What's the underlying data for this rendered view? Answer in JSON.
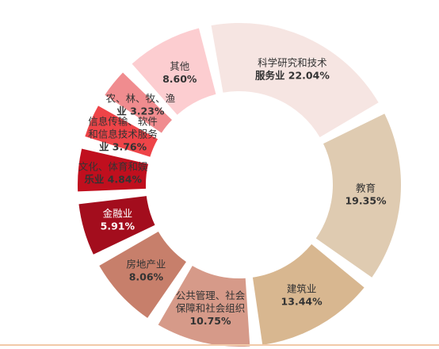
{
  "chart_data": {
    "type": "pie",
    "title": "",
    "categories": [
      "科学研究和技术服务业",
      "教育",
      "建筑业",
      "公共管理、社会保障和社会组织",
      "房地产业",
      "金融业",
      "文化、体育和娱乐业",
      "信息传输、软件和信息技术服务业",
      "农、林、牧、渔业",
      "其他"
    ],
    "label_lines": [
      [
        "科学研究和技术",
        "服务业 22.04%"
      ],
      [
        "教育",
        "19.35%"
      ],
      [
        "建筑业",
        "13.44%"
      ],
      [
        "公共管理、社会",
        "保障和社会组织",
        "10.75%"
      ],
      [
        "房地产业",
        "8.06%"
      ],
      [
        "金融业",
        "5.91%"
      ],
      [
        "文化、体育和娱",
        "乐业 4.84%"
      ],
      [
        "信息传输、软件",
        "和信息技术服务",
        "业 3.76%"
      ],
      [
        "农、林、牧、渔",
        "业 3.23%"
      ],
      [
        "其他",
        "8.60%"
      ]
    ],
    "values": [
      22.04,
      19.35,
      13.44,
      10.75,
      8.06,
      5.91,
      4.84,
      3.76,
      3.23,
      8.6
    ],
    "colors": [
      "#f6e5e2",
      "#dfcbb1",
      "#d8b790",
      "#d69a89",
      "#c77f6b",
      "#a30d1d",
      "#c00f1e",
      "#ee4448",
      "#f08c8f",
      "#fccdd0"
    ],
    "label_colors": [
      "#333333",
      "#333333",
      "#333333",
      "#333333",
      "#333333",
      "#ffffff",
      "#333333",
      "#333333",
      "#333333",
      "#333333"
    ],
    "legend": "none"
  }
}
